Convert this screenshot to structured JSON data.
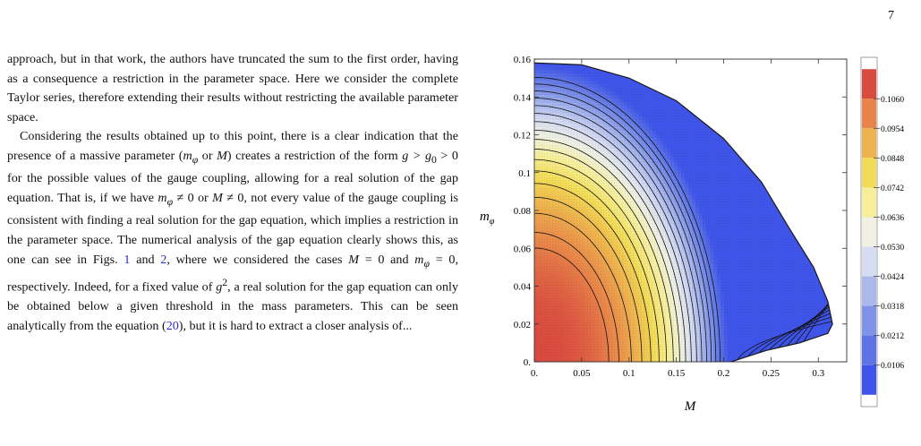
{
  "page_number": "7",
  "body": {
    "p1": "approach, but in that work, the authors have truncated the sum to the first order, having as a consequence a restriction in the parameter space. Here we consider the complete Taylor series, therefore extending their results without restricting the available parameter space.",
    "p2": {
      "t1": "Considering the results obtained up to this point, there is a clear indication that the presence of a massive parameter (",
      "m1": "m",
      "s1": "φ",
      "t2": " or ",
      "m2": "M",
      "t3": ") creates a restriction of the form ",
      "m3": "g > g",
      "s3": "0",
      "t4": " > 0 for the possible values of the gauge coupling, allowing for a real solution of the gap equation. That is, if we have ",
      "m4": "m",
      "s4": "φ",
      "t5": " ≠ 0 or ",
      "m5": "M",
      "t6": " ≠ 0, not every value of the gauge coupling is consistent with finding a real solution for the gap equation, which implies a restriction in the parameter space. The numerical analysis of the gap equation clearly shows this, as one can see in Figs. ",
      "ref1": "1",
      "t7": " and ",
      "ref2": "2",
      "t8": ", where we considered the cases ",
      "m6": "M",
      "t9": " = 0 and ",
      "m7": "m",
      "s7": "φ",
      "t10": " = 0, respectively. Indeed, for a fixed value of ",
      "m8": "g",
      "sup8": "2",
      "t11": ", a real solution for the gap equation can only be obtained below a given threshold in the mass parameters. This can be seen analytically from the equation (",
      "ref3": "20",
      "t12": "), but it is hard to extract a closer analysis of..."
    }
  },
  "chart_data": {
    "type": "contour",
    "xlabel": "M",
    "ylabel": "m",
    "ylabel_sub": "φ",
    "xlim": [
      0,
      0.33
    ],
    "ylim": [
      0,
      0.16
    ],
    "x_ticks": [
      "0.",
      "0.05",
      "0.1",
      "0.15",
      "0.2",
      "0.25",
      "0.3"
    ],
    "x_tick_values": [
      0,
      0.05,
      0.1,
      0.15,
      0.2,
      0.25,
      0.3
    ],
    "y_ticks": [
      "0.",
      "0.02",
      "0.04",
      "0.06",
      "0.08",
      "0.1",
      "0.12",
      "0.14",
      "0.16"
    ],
    "y_tick_values": [
      0,
      0.02,
      0.04,
      0.06,
      0.08,
      0.1,
      0.12,
      0.14,
      0.16
    ],
    "colorbar_labels": [
      "0.1060",
      "0.0954",
      "0.0848",
      "0.0742",
      "0.0636",
      "0.0530",
      "0.0424",
      "0.0318",
      "0.0212",
      "0.0106"
    ],
    "colorbar_values": [
      0.106,
      0.0954,
      0.0848,
      0.0742,
      0.0636,
      0.053,
      0.0424,
      0.0318,
      0.0212,
      0.0106
    ],
    "colorbar_colors": [
      "#d94a3f",
      "#e8844a",
      "#eeb24e",
      "#f2dc56",
      "#f6ee98",
      "#f0f1e2",
      "#d6dcf2",
      "#aab8ec",
      "#7f93e8",
      "#5d73e6",
      "#3f54e8"
    ],
    "color_range": [
      0,
      0.1166
    ],
    "boundary": [
      [
        0,
        0.158
      ],
      [
        0.05,
        0.157
      ],
      [
        0.1,
        0.15
      ],
      [
        0.15,
        0.138
      ],
      [
        0.2,
        0.118
      ],
      [
        0.24,
        0.095
      ],
      [
        0.27,
        0.07
      ],
      [
        0.295,
        0.05
      ],
      [
        0.31,
        0.032
      ],
      [
        0.315,
        0.02
      ],
      [
        0.31,
        0.015
      ],
      [
        0.28,
        0.01
      ],
      [
        0.245,
        0.006
      ],
      [
        0.22,
        0.002
      ],
      [
        0.208,
        0
      ]
    ],
    "contour_levels": [
      0.012,
      0.018,
      0.024,
      0.03,
      0.036,
      0.042,
      0.048,
      0.054,
      0.06,
      0.066,
      0.072,
      0.078,
      0.084,
      0.09,
      0.096,
      0.102,
      0.106
    ]
  }
}
